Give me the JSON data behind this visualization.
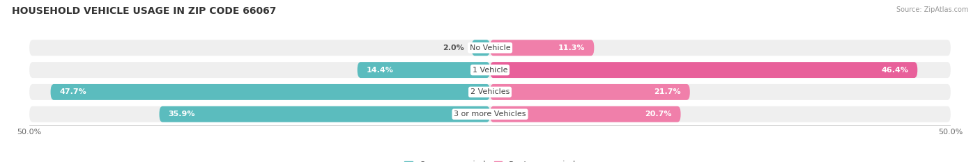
{
  "title": "HOUSEHOLD VEHICLE USAGE IN ZIP CODE 66067",
  "source": "Source: ZipAtlas.com",
  "categories": [
    "No Vehicle",
    "1 Vehicle",
    "2 Vehicles",
    "3 or more Vehicles"
  ],
  "owner_values": [
    2.0,
    14.4,
    47.7,
    35.9
  ],
  "renter_values": [
    11.3,
    46.4,
    21.7,
    20.7
  ],
  "owner_color": "#5bbcbe",
  "renter_color": "#f07faa",
  "renter_color_dark": "#e8609a",
  "background_color": "#ffffff",
  "bar_background_color": "#efefef",
  "xlim": [
    -50,
    50
  ],
  "title_fontsize": 10,
  "value_fontsize": 8,
  "cat_fontsize": 8,
  "axis_fontsize": 8,
  "legend_fontsize": 8.5
}
